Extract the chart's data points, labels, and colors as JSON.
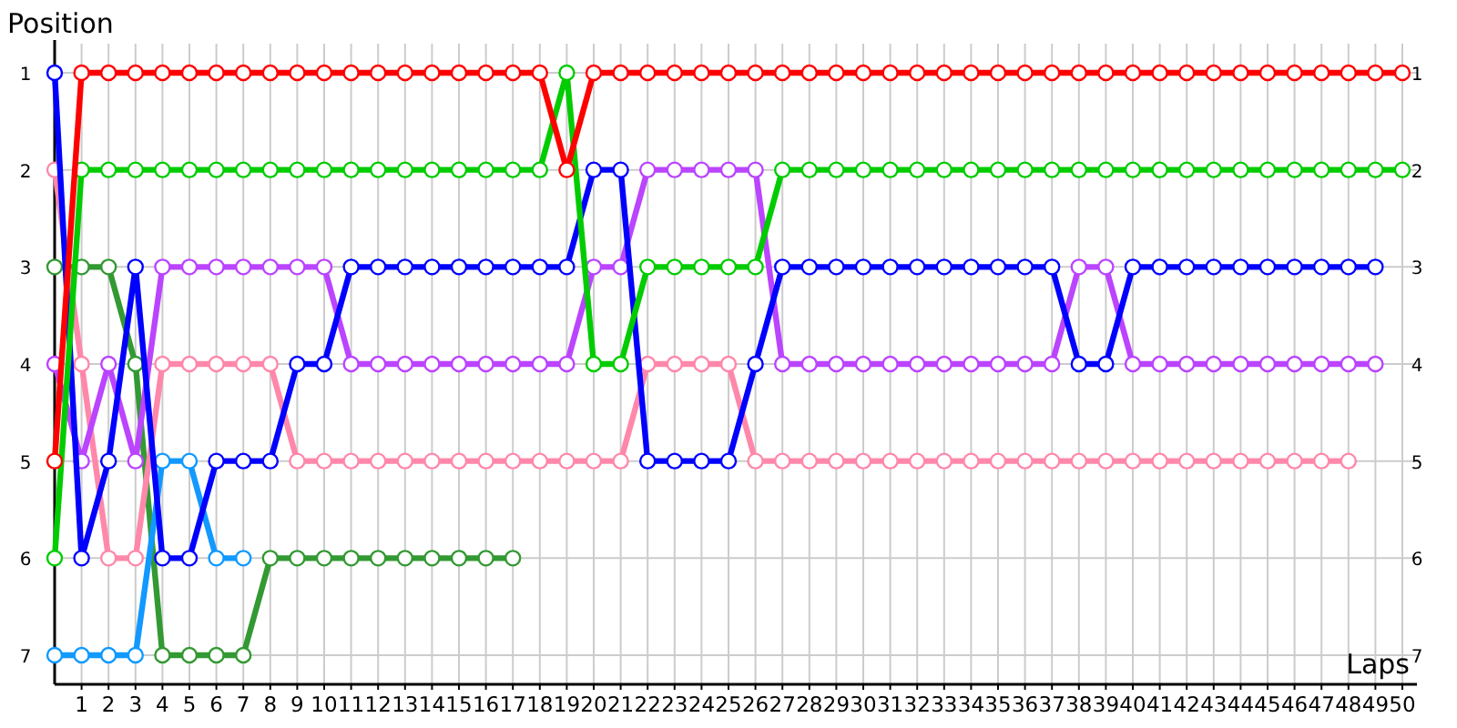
{
  "chart_data": {
    "type": "line",
    "xlabel": "Laps",
    "ylabel": "Position",
    "x": [
      0,
      1,
      2,
      3,
      4,
      5,
      6,
      7,
      8,
      9,
      10,
      11,
      12,
      13,
      14,
      15,
      16,
      17,
      18,
      19,
      20,
      21,
      22,
      23,
      24,
      25,
      26,
      27,
      28,
      29,
      30,
      31,
      32,
      33,
      34,
      35,
      36,
      37,
      38,
      39,
      40,
      41,
      42,
      43,
      44,
      45,
      46,
      47,
      48,
      49,
      50
    ],
    "xlim": [
      0,
      50
    ],
    "xticks": [
      1,
      2,
      3,
      4,
      5,
      6,
      7,
      8,
      9,
      10,
      11,
      12,
      13,
      14,
      15,
      16,
      17,
      18,
      19,
      20,
      21,
      22,
      23,
      24,
      25,
      26,
      27,
      28,
      29,
      30,
      31,
      32,
      33,
      34,
      35,
      36,
      37,
      38,
      39,
      40,
      41,
      42,
      43,
      44,
      45,
      46,
      47,
      48,
      49,
      50
    ],
    "ylim": [
      7.3,
      0.7
    ],
    "yticks": [
      1,
      2,
      3,
      4,
      5,
      6,
      7
    ],
    "y2lim": [
      7.3,
      0.7
    ],
    "y2ticks": [
      1,
      2,
      3,
      4,
      5,
      6,
      7
    ],
    "grid": true,
    "marker": "circle",
    "line_style": "solid",
    "series": [
      {
        "color": "#339933",
        "values": [
          3,
          3,
          3,
          4,
          7,
          7,
          7,
          7,
          6,
          6,
          6,
          6,
          6,
          6,
          6,
          6,
          6,
          6,
          null,
          null,
          null,
          null,
          null,
          null,
          null,
          null,
          null,
          null,
          null,
          null,
          null,
          null,
          null,
          null,
          null,
          null,
          null,
          null,
          null,
          null,
          null,
          null,
          null,
          null,
          null,
          null,
          null,
          null,
          null,
          null,
          null
        ]
      },
      {
        "color": "#1199ff",
        "values": [
          7,
          7,
          7,
          7,
          5,
          5,
          6,
          6,
          null,
          null,
          null,
          null,
          null,
          null,
          null,
          null,
          null,
          null,
          null,
          null,
          null,
          null,
          null,
          null,
          null,
          null,
          null,
          null,
          null,
          null,
          null,
          null,
          null,
          null,
          null,
          null,
          null,
          null,
          null,
          null,
          null,
          null,
          null,
          null,
          null,
          null,
          null,
          null,
          null,
          null,
          null
        ]
      },
      {
        "color": "#ff88aa",
        "values": [
          2,
          4,
          6,
          6,
          4,
          4,
          4,
          4,
          4,
          5,
          5,
          5,
          5,
          5,
          5,
          5,
          5,
          5,
          5,
          5,
          5,
          5,
          4,
          4,
          4,
          4,
          5,
          5,
          5,
          5,
          5,
          5,
          5,
          5,
          5,
          5,
          5,
          5,
          5,
          5,
          5,
          5,
          5,
          5,
          5,
          5,
          5,
          5,
          5,
          null,
          null
        ]
      },
      {
        "color": "#bb44ff",
        "values": [
          4,
          5,
          4,
          5,
          3,
          3,
          3,
          3,
          3,
          3,
          3,
          4,
          4,
          4,
          4,
          4,
          4,
          4,
          4,
          4,
          3,
          3,
          2,
          2,
          2,
          2,
          2,
          4,
          4,
          4,
          4,
          4,
          4,
          4,
          4,
          4,
          4,
          4,
          3,
          3,
          4,
          4,
          4,
          4,
          4,
          4,
          4,
          4,
          4,
          4,
          null
        ]
      },
      {
        "color": "#0000ff",
        "values": [
          1,
          6,
          5,
          3,
          6,
          6,
          5,
          5,
          5,
          4,
          4,
          3,
          3,
          3,
          3,
          3,
          3,
          3,
          3,
          3,
          2,
          2,
          5,
          5,
          5,
          5,
          4,
          3,
          3,
          3,
          3,
          3,
          3,
          3,
          3,
          3,
          3,
          3,
          4,
          4,
          3,
          3,
          3,
          3,
          3,
          3,
          3,
          3,
          3,
          3,
          null
        ]
      },
      {
        "color": "#00cc00",
        "values": [
          6,
          2,
          2,
          2,
          2,
          2,
          2,
          2,
          2,
          2,
          2,
          2,
          2,
          2,
          2,
          2,
          2,
          2,
          2,
          1,
          4,
          4,
          3,
          3,
          3,
          3,
          3,
          2,
          2,
          2,
          2,
          2,
          2,
          2,
          2,
          2,
          2,
          2,
          2,
          2,
          2,
          2,
          2,
          2,
          2,
          2,
          2,
          2,
          2,
          2,
          2
        ]
      },
      {
        "color": "#ff0000",
        "values": [
          5,
          1,
          1,
          1,
          1,
          1,
          1,
          1,
          1,
          1,
          1,
          1,
          1,
          1,
          1,
          1,
          1,
          1,
          1,
          2,
          1,
          1,
          1,
          1,
          1,
          1,
          1,
          1,
          1,
          1,
          1,
          1,
          1,
          1,
          1,
          1,
          1,
          1,
          1,
          1,
          1,
          1,
          1,
          1,
          1,
          1,
          1,
          1,
          1,
          1,
          1
        ]
      }
    ]
  }
}
